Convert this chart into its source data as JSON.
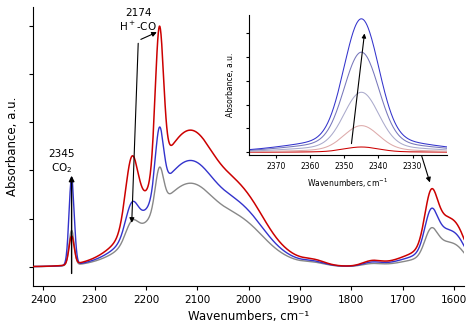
{
  "xlabel": "Wavenumbers, cm⁻¹",
  "ylabel": "Absorbance, a.u.",
  "xmin": 1580,
  "xmax": 2420,
  "main_colors": [
    "#cc0000",
    "#3333cc",
    "#888888"
  ],
  "inset_colors": [
    "#cc0000",
    "#8888dd",
    "#9999aa",
    "#5555bb",
    "#3333cc"
  ],
  "background_color": "#ffffff"
}
